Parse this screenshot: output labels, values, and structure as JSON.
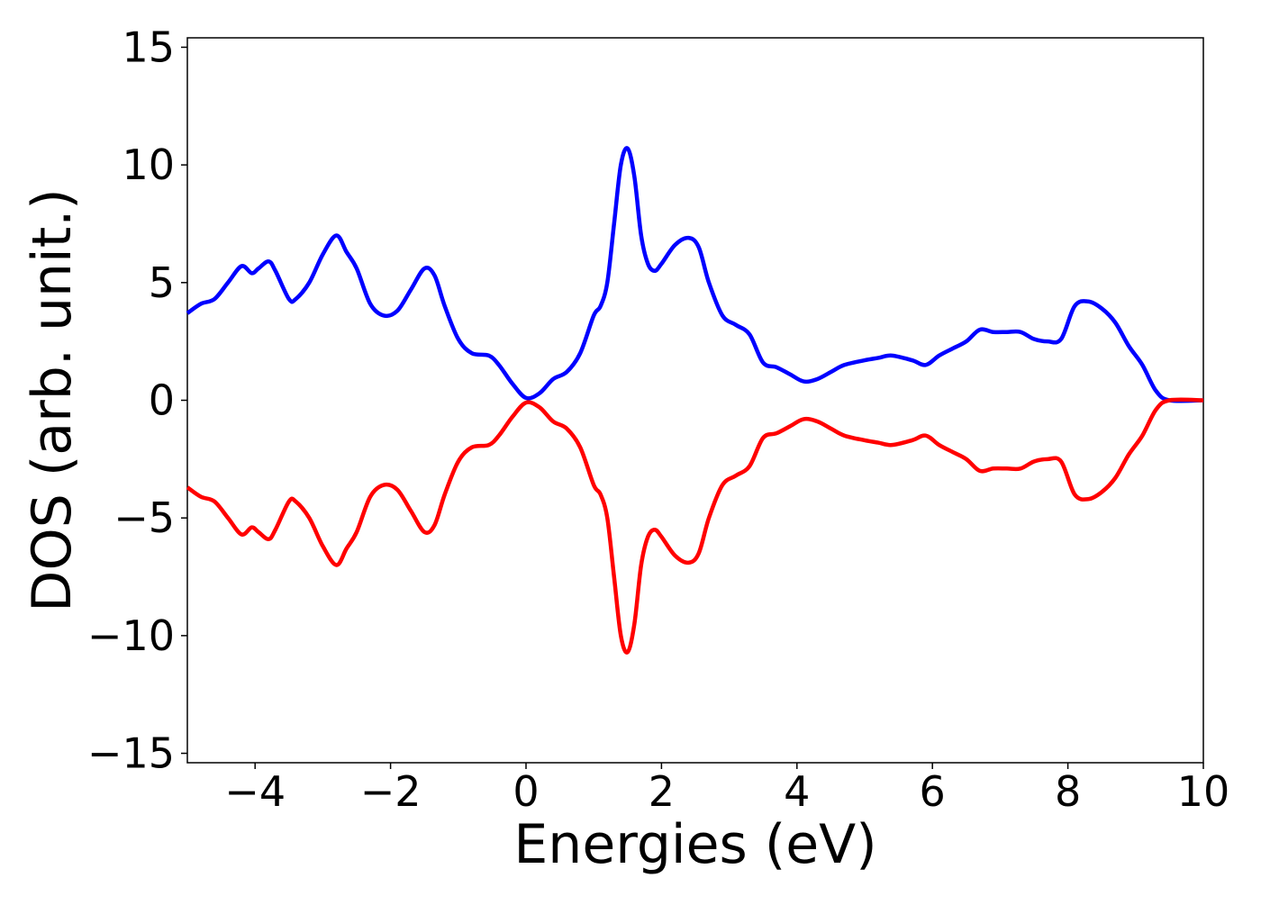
{
  "chart_data": {
    "type": "line",
    "title": "",
    "xlabel": "Energies (eV)",
    "ylabel": "DOS (arb. unit.)",
    "xlim": [
      -5,
      10
    ],
    "ylim": [
      -15.4,
      15.4
    ],
    "grid": false,
    "legend": "none",
    "xticks": [
      -4,
      -2,
      0,
      2,
      4,
      6,
      8,
      10
    ],
    "yticks": [
      -15,
      -10,
      -5,
      0,
      5,
      10,
      15
    ],
    "xtick_labels": [
      "−4",
      "−2",
      "0",
      "2",
      "4",
      "6",
      "8",
      "10"
    ],
    "ytick_labels": [
      "−15",
      "−10",
      "−5",
      "0",
      "5",
      "10",
      "15"
    ],
    "series": [
      {
        "color": "#0000ff",
        "x": [
          -5.0,
          -4.8,
          -4.6,
          -4.4,
          -4.2,
          -4.05,
          -3.95,
          -3.8,
          -3.7,
          -3.5,
          -3.4,
          -3.2,
          -3.0,
          -2.8,
          -2.65,
          -2.5,
          -2.3,
          -2.1,
          -1.9,
          -1.7,
          -1.5,
          -1.35,
          -1.2,
          -1.0,
          -0.8,
          -0.55,
          -0.4,
          -0.2,
          0.0,
          0.2,
          0.4,
          0.6,
          0.8,
          1.0,
          1.1,
          1.2,
          1.3,
          1.4,
          1.5,
          1.6,
          1.7,
          1.8,
          1.9,
          2.0,
          2.2,
          2.4,
          2.55,
          2.7,
          2.9,
          3.1,
          3.3,
          3.5,
          3.7,
          3.9,
          4.1,
          4.3,
          4.5,
          4.7,
          5.0,
          5.2,
          5.4,
          5.7,
          5.9,
          6.1,
          6.3,
          6.5,
          6.7,
          6.9,
          7.1,
          7.3,
          7.5,
          7.7,
          7.9,
          8.1,
          8.3,
          8.5,
          8.7,
          8.9,
          9.1,
          9.3,
          9.5,
          10.0
        ],
        "values": [
          3.7,
          4.1,
          4.3,
          5.0,
          5.7,
          5.4,
          5.6,
          5.9,
          5.5,
          4.3,
          4.3,
          5.0,
          6.2,
          7.0,
          6.3,
          5.6,
          4.1,
          3.6,
          3.8,
          4.7,
          5.6,
          5.3,
          4.0,
          2.6,
          2.0,
          1.9,
          1.5,
          0.7,
          0.1,
          0.3,
          0.9,
          1.2,
          2.0,
          3.6,
          4.0,
          5.0,
          7.5,
          10.0,
          10.7,
          9.5,
          7.0,
          5.8,
          5.5,
          5.8,
          6.6,
          6.9,
          6.5,
          5.0,
          3.6,
          3.2,
          2.8,
          1.6,
          1.4,
          1.1,
          0.8,
          0.9,
          1.2,
          1.5,
          1.7,
          1.8,
          1.9,
          1.7,
          1.5,
          1.9,
          2.2,
          2.5,
          3.0,
          2.9,
          2.9,
          2.9,
          2.6,
          2.5,
          2.6,
          4.0,
          4.2,
          3.9,
          3.3,
          2.3,
          1.5,
          0.4,
          0.0,
          0.0
        ]
      },
      {
        "color": "#ff0000",
        "x": [
          -5.0,
          -4.8,
          -4.6,
          -4.4,
          -4.2,
          -4.05,
          -3.95,
          -3.8,
          -3.7,
          -3.5,
          -3.4,
          -3.2,
          -3.0,
          -2.8,
          -2.65,
          -2.5,
          -2.3,
          -2.1,
          -1.9,
          -1.7,
          -1.5,
          -1.35,
          -1.2,
          -1.0,
          -0.8,
          -0.55,
          -0.4,
          -0.2,
          0.0,
          0.2,
          0.4,
          0.6,
          0.8,
          1.0,
          1.1,
          1.2,
          1.3,
          1.4,
          1.5,
          1.6,
          1.7,
          1.8,
          1.9,
          2.0,
          2.2,
          2.4,
          2.55,
          2.7,
          2.9,
          3.1,
          3.3,
          3.5,
          3.7,
          3.9,
          4.1,
          4.3,
          4.5,
          4.7,
          5.0,
          5.2,
          5.4,
          5.7,
          5.9,
          6.1,
          6.3,
          6.5,
          6.7,
          6.9,
          7.1,
          7.3,
          7.5,
          7.7,
          7.9,
          8.1,
          8.3,
          8.5,
          8.7,
          8.9,
          9.1,
          9.3,
          9.5,
          10.0
        ],
        "values": [
          -3.7,
          -4.1,
          -4.3,
          -5.0,
          -5.7,
          -5.4,
          -5.6,
          -5.9,
          -5.5,
          -4.3,
          -4.3,
          -5.0,
          -6.2,
          -7.0,
          -6.3,
          -5.6,
          -4.1,
          -3.6,
          -3.8,
          -4.7,
          -5.6,
          -5.3,
          -4.0,
          -2.6,
          -2.0,
          -1.9,
          -1.5,
          -0.7,
          -0.1,
          -0.3,
          -0.9,
          -1.2,
          -2.0,
          -3.6,
          -4.0,
          -5.0,
          -7.5,
          -10.0,
          -10.7,
          -9.5,
          -7.0,
          -5.8,
          -5.5,
          -5.8,
          -6.6,
          -6.9,
          -6.5,
          -5.0,
          -3.6,
          -3.2,
          -2.8,
          -1.6,
          -1.4,
          -1.1,
          -0.8,
          -0.9,
          -1.2,
          -1.5,
          -1.7,
          -1.8,
          -1.9,
          -1.7,
          -1.5,
          -1.9,
          -2.2,
          -2.5,
          -3.0,
          -2.9,
          -2.9,
          -2.9,
          -2.6,
          -2.5,
          -2.6,
          -4.0,
          -4.2,
          -3.9,
          -3.3,
          -2.3,
          -1.5,
          -0.4,
          0.0,
          0.0
        ]
      }
    ]
  }
}
